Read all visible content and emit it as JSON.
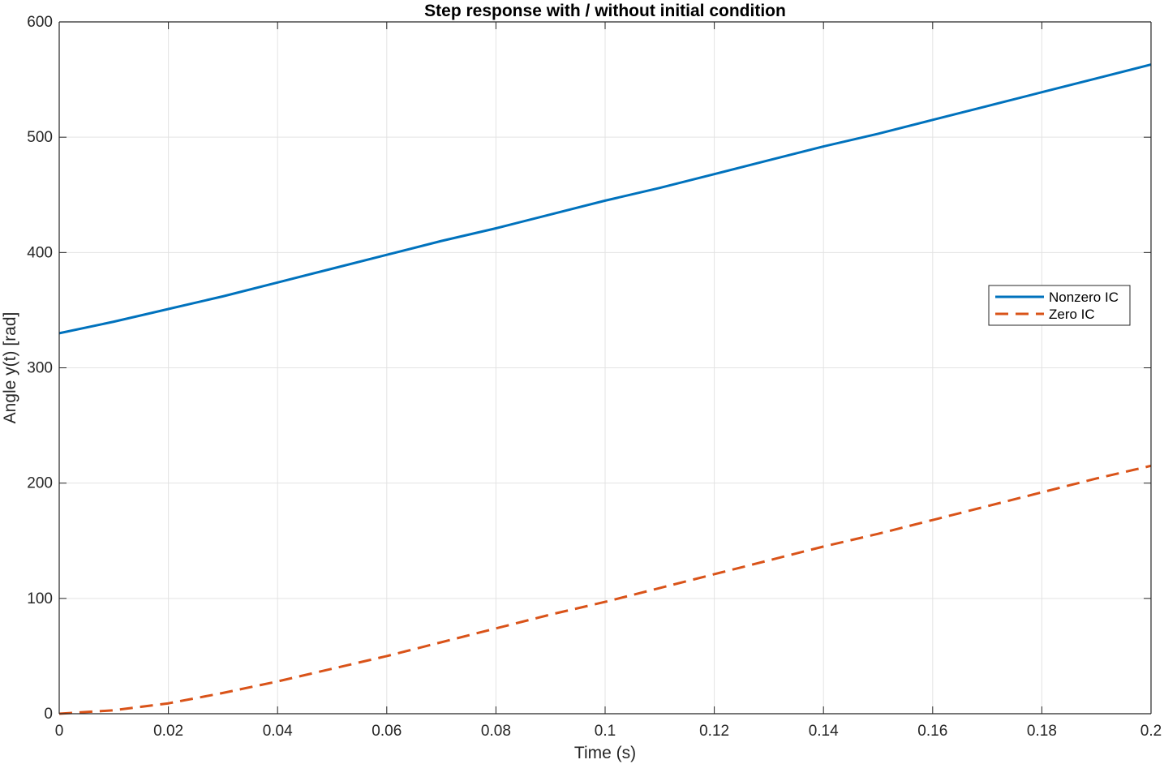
{
  "chart_data": {
    "type": "line",
    "title": "Step response with / without initial condition",
    "xlabel": "Time (s)",
    "ylabel": "Angle y(t) [rad]",
    "xlim": [
      0,
      0.2
    ],
    "ylim": [
      0,
      600
    ],
    "xticks": [
      0,
      0.02,
      0.04,
      0.06,
      0.08,
      0.1,
      0.12,
      0.14,
      0.16,
      0.18,
      0.2
    ],
    "xtick_labels": [
      "0",
      "0.02",
      "0.04",
      "0.06",
      "0.08",
      "0.1",
      "0.12",
      "0.14",
      "0.16",
      "0.18",
      "0.2"
    ],
    "yticks": [
      0,
      100,
      200,
      300,
      400,
      500,
      600
    ],
    "ytick_labels": [
      "0",
      "100",
      "200",
      "300",
      "400",
      "500",
      "600"
    ],
    "grid": true,
    "legend_position": "right",
    "x": [
      0,
      0.01,
      0.02,
      0.03,
      0.04,
      0.05,
      0.06,
      0.07,
      0.08,
      0.09,
      0.1,
      0.11,
      0.12,
      0.13,
      0.14,
      0.15,
      0.16,
      0.17,
      0.18,
      0.19,
      0.2
    ],
    "series": [
      {
        "name": "Nonzero IC",
        "color": "#0072BD",
        "style": "solid",
        "values": [
          330,
          340,
          351,
          362,
          374,
          386,
          398,
          410,
          421,
          433,
          445,
          456,
          468,
          480,
          492,
          503,
          515,
          527,
          539,
          551,
          563
        ]
      },
      {
        "name": "Zero IC",
        "color": "#D95319",
        "style": "dashed",
        "values": [
          0,
          3,
          9,
          18,
          28,
          39,
          50,
          62,
          74,
          86,
          97,
          109,
          121,
          133,
          145,
          156,
          168,
          180,
          192,
          204,
          215
        ]
      }
    ]
  }
}
